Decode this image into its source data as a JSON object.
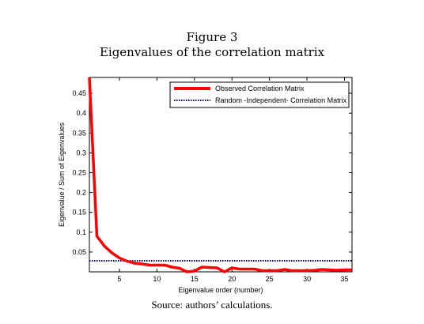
{
  "figure": {
    "number": "Figure 3",
    "caption": "Eigenvalues of the correlation matrix",
    "source": "Source: authors’ calculations."
  },
  "chart_data": {
    "type": "line",
    "title": "",
    "xlabel": "Eigenvalue order (number)",
    "ylabel": "Eigenvalue / Sum of Eigenvalues",
    "xlim": [
      1,
      36
    ],
    "ylim": [
      0,
      0.49
    ],
    "xticks": [
      5,
      10,
      15,
      20,
      25,
      30,
      35
    ],
    "yticks": [
      0.05,
      0.1,
      0.15,
      0.2,
      0.25,
      0.3,
      0.35,
      0.4,
      0.45
    ],
    "grid": false,
    "legend_position": "top-right",
    "series": [
      {
        "name": "Observed Correlation Matrix",
        "color": "#ff0000",
        "style": "solid",
        "x": [
          1,
          2,
          3,
          4,
          5,
          6,
          7,
          8,
          9,
          10,
          11,
          12,
          13,
          14,
          15,
          16,
          17,
          18,
          19,
          20,
          21,
          22,
          23,
          24,
          25,
          26,
          27,
          28,
          29,
          30,
          31,
          32,
          33,
          34,
          35,
          36
        ],
        "y": [
          0.49,
          0.09,
          0.065,
          0.048,
          0.035,
          0.027,
          0.022,
          0.02,
          0.017,
          0.017,
          0.017,
          0.012,
          0.009,
          0.0,
          0.002,
          0.012,
          0.011,
          0.01,
          0.0,
          0.01,
          0.007,
          0.007,
          0.007,
          0.003,
          0.003,
          0.003,
          0.006,
          0.003,
          0.003,
          0.003,
          0.004,
          0.006,
          0.005,
          0.004,
          0.005,
          0.005
        ]
      },
      {
        "name": "Random -Independent- Correlation Matrix",
        "color": "#000080",
        "style": "dotted",
        "x": [
          1,
          36
        ],
        "y": [
          0.028,
          0.028
        ]
      }
    ]
  }
}
